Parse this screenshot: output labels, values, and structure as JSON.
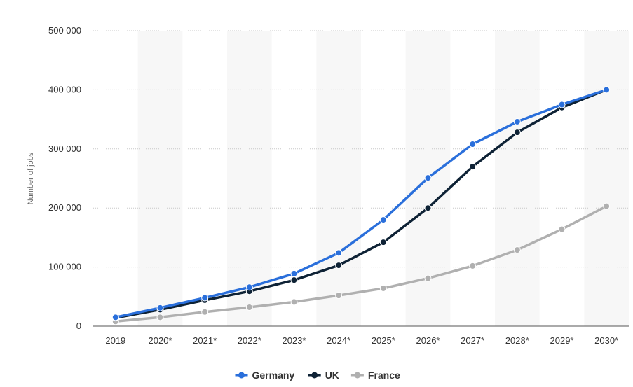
{
  "chart_data": {
    "type": "line",
    "title": "",
    "xlabel": "",
    "ylabel": "Number of jobs",
    "ylim": [
      0,
      500000
    ],
    "yticks": [
      0,
      100000,
      200000,
      300000,
      400000,
      500000
    ],
    "ytick_labels": [
      "0",
      "100 000",
      "200 000",
      "300 000",
      "400 000",
      "500 000"
    ],
    "categories": [
      "2019",
      "2020*",
      "2021*",
      "2022*",
      "2023*",
      "2024*",
      "2025*",
      "2026*",
      "2027*",
      "2028*",
      "2029*",
      "2030*"
    ],
    "series": [
      {
        "name": "Germany",
        "color": "#2a6fdb",
        "values": [
          15000,
          31000,
          48000,
          66000,
          89000,
          124000,
          180000,
          251000,
          308000,
          346000,
          375000,
          400000
        ]
      },
      {
        "name": "UK",
        "color": "#0e2235",
        "values": [
          14000,
          28000,
          44000,
          59000,
          78000,
          103000,
          142000,
          200000,
          270000,
          328000,
          370000,
          400000
        ]
      },
      {
        "name": "France",
        "color": "#b0b0b0",
        "values": [
          8000,
          15000,
          24000,
          32000,
          41000,
          52000,
          64000,
          81000,
          102000,
          129000,
          164000,
          203000
        ]
      }
    ],
    "grid": true,
    "legend_position": "bottom-center"
  }
}
